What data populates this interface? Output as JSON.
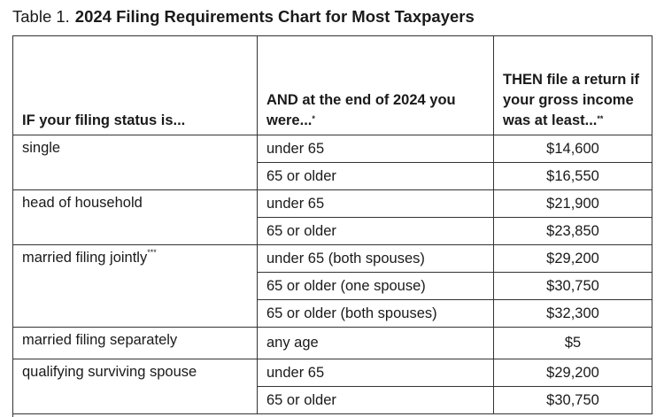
{
  "title": {
    "label": "Table 1.",
    "text": "2024 Filing Requirements Chart for Most Taxpayers"
  },
  "table": {
    "headers": [
      {
        "text": "IF your filing status is..."
      },
      {
        "text": "AND at the end of 2024 you were...",
        "note": "*"
      },
      {
        "text": "THEN file a return if your gross income was at least...",
        "note": "**"
      }
    ],
    "groups": [
      {
        "status": "single",
        "rows": [
          [
            "under 65",
            "$14,600"
          ],
          [
            "65 or older",
            "$16,550"
          ]
        ]
      },
      {
        "status": "head of household",
        "rows": [
          [
            "under 65",
            "$21,900"
          ],
          [
            "65 or older",
            "$23,850"
          ]
        ]
      },
      {
        "status": "married filing jointly",
        "note": "***",
        "rows": [
          [
            "under 65 (both spouses)",
            "$29,200"
          ],
          [
            "65 or older (one spouse)",
            "$30,750"
          ],
          [
            "65 or older (both spouses)",
            "$32,300"
          ]
        ]
      },
      {
        "status": "married filing separately",
        "rows": [
          [
            "any age",
            "$5"
          ]
        ]
      },
      {
        "status": "qualifying surviving spouse",
        "rows": [
          [
            "under 65",
            "$29,200"
          ],
          [
            "65 or older",
            "$30,750"
          ]
        ]
      }
    ]
  }
}
